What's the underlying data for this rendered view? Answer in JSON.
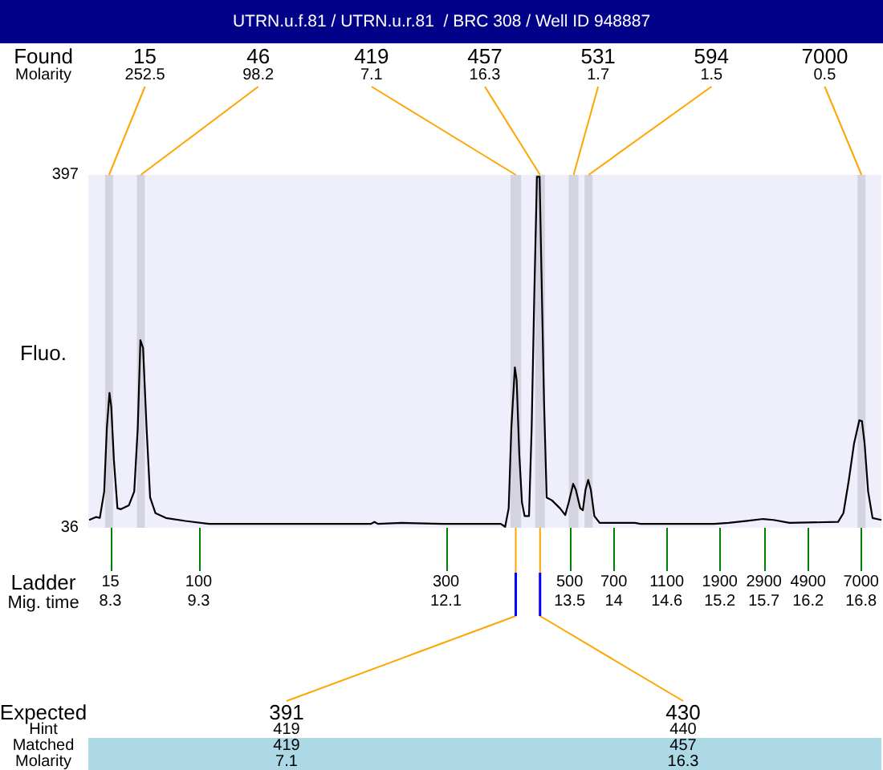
{
  "chart_data": {
    "type": "line",
    "title": "UTRN.u.f.81 / UTRN.u.r.81  / BRC 308 / Well ID 948887",
    "xlabel": "Mig. time",
    "ylabel": "Fluo.",
    "x": [
      8.06,
      8.14,
      8.18,
      8.23,
      8.26,
      8.29,
      8.31,
      8.34,
      8.38,
      8.42,
      8.51,
      8.57,
      8.61,
      8.64,
      8.67,
      8.71,
      8.75,
      8.81,
      8.93,
      9.15,
      9.42,
      11.25,
      11.29,
      11.33,
      11.6,
      12.06,
      12.72,
      12.77,
      12.81,
      12.84,
      12.88,
      12.9,
      12.93,
      12.96,
      12.99,
      13.04,
      13.07,
      13.1,
      13.13,
      13.16,
      13.18,
      13.21,
      13.24,
      13.3,
      13.39,
      13.45,
      13.49,
      13.54,
      13.57,
      13.62,
      13.65,
      13.68,
      13.71,
      13.74,
      13.78,
      13.84,
      14.24,
      14.3,
      15.14,
      15.3,
      15.51,
      15.69,
      15.81,
      15.99,
      16.54,
      16.6,
      16.66,
      16.72,
      16.78,
      16.81,
      16.84,
      16.88,
      16.93,
      17.03
    ],
    "values": [
      44,
      47,
      46,
      73,
      138,
      174,
      160,
      105,
      56,
      55,
      59,
      73,
      138,
      228,
      220,
      138,
      67,
      51,
      46,
      43,
      40,
      40,
      42,
      40,
      41,
      40,
      40,
      37,
      56,
      138,
      200,
      187,
      111,
      62,
      48,
      48,
      138,
      275,
      395,
      395,
      302,
      166,
      67,
      64,
      56,
      49,
      62,
      81,
      75,
      56,
      54,
      75,
      85,
      75,
      48,
      41,
      41,
      40,
      40,
      41,
      43,
      45,
      44,
      41,
      42,
      51,
      84,
      122,
      146,
      145,
      122,
      73,
      46,
      44
    ],
    "color": "#000000",
    "marker": "none",
    "line_style": "solid",
    "grid": false,
    "xlim": [
      8.05,
      17.03
    ],
    "xticks": [
      8.3,
      9.3,
      12.1,
      13.5,
      14,
      14.6,
      15.2,
      15.7,
      16.2,
      16.8
    ],
    "ylim": [
      36,
      397
    ],
    "yticks": [
      36,
      397
    ],
    "bands": [
      {
        "axis": "x",
        "from": 8.24,
        "to": 8.33,
        "label": "15",
        "color": "#d4d4e0"
      },
      {
        "axis": "x",
        "from": 8.6,
        "to": 8.69,
        "label": "46",
        "color": "#d4d4e0"
      },
      {
        "axis": "x",
        "from": 12.83,
        "to": 12.95,
        "label": "419",
        "color": "#d4d4e0"
      },
      {
        "axis": "x",
        "from": 13.11,
        "to": 13.22,
        "label": "457",
        "color": "#d4d4e0"
      },
      {
        "axis": "x",
        "from": 13.49,
        "to": 13.6,
        "label": "531",
        "color": "#d4d4e0"
      },
      {
        "axis": "x",
        "from": 13.67,
        "to": 13.76,
        "label": "594",
        "color": "#d4d4e0"
      },
      {
        "axis": "x",
        "from": 16.76,
        "to": 16.85,
        "label": "7000",
        "color": "#d4d4e0"
      }
    ],
    "annotations": [
      "Found",
      "Molarity",
      {
        "text": "252.5",
        "x": 8.285,
        "y": 397
      },
      {
        "text": "98.2",
        "x": 8.645,
        "y": 397
      },
      {
        "text": "7.1",
        "x": 12.89,
        "y": 397
      },
      {
        "text": "16.3",
        "x": 13.165,
        "y": 397
      },
      {
        "text": "1.7",
        "x": 13.545,
        "y": 397
      },
      {
        "text": "1.5",
        "x": 13.715,
        "y": 397
      },
      {
        "text": "0.5",
        "x": 16.805,
        "y": 397
      },
      "Ladder",
      {
        "text": "15",
        "x": 8.3,
        "y": 36
      },
      {
        "text": "100",
        "x": 9.3,
        "y": 36
      },
      {
        "text": "300",
        "x": 12.1,
        "y": 36
      },
      {
        "text": "500",
        "x": 13.5,
        "y": 36
      },
      {
        "text": "700",
        "x": 14,
        "y": 36
      },
      {
        "text": "1100",
        "x": 14.6,
        "y": 36
      },
      {
        "text": "1900",
        "x": 15.2,
        "y": 36
      },
      {
        "text": "2900",
        "x": 15.7,
        "y": 36
      },
      {
        "text": "4900",
        "x": 16.2,
        "y": 36
      },
      {
        "text": "7000",
        "x": 16.8,
        "y": 36
      },
      "Expected",
      "Hint",
      "Matched",
      "Molarity",
      {
        "text": "391",
        "x": 12.89,
        "y": 36
      },
      "419",
      "419",
      "7.1",
      {
        "text": "430",
        "x": 13.165,
        "y": 36
      },
      "440",
      "457",
      "16.3"
    ]
  }
}
